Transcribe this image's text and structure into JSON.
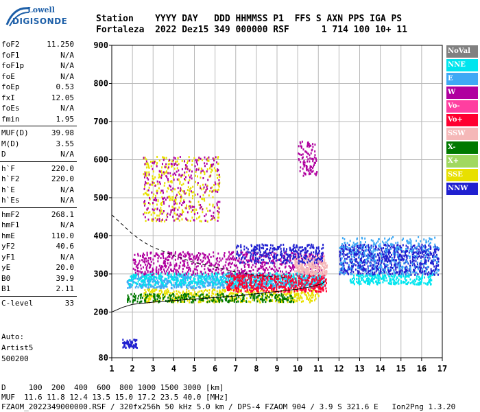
{
  "logo": {
    "line1": "Lowell",
    "line2": "DIGISONDE"
  },
  "header": {
    "line1": "Station    YYYY DAY   DDD HHMMSS P1  FFS S AXN PPS IGA PS",
    "line2": "Fortaleza  2022 Dez15 349 000000 RSF      1 714 100 10+ 11"
  },
  "params": {
    "group1": [
      {
        "name": "foF2",
        "value": "11.250"
      },
      {
        "name": "foF1",
        "value": "N/A"
      },
      {
        "name": "foF1p",
        "value": "N/A"
      },
      {
        "name": "foE",
        "value": "N/A"
      },
      {
        "name": "foEp",
        "value": "0.53"
      },
      {
        "name": "fxI",
        "value": "12.05"
      },
      {
        "name": "foEs",
        "value": "N/A"
      },
      {
        "name": "fmin",
        "value": "1.95"
      }
    ],
    "group2": [
      {
        "name": "MUF(D)",
        "value": "39.98"
      },
      {
        "name": "M(D)",
        "value": "3.55"
      },
      {
        "name": "D",
        "value": "N/A"
      }
    ],
    "group3": [
      {
        "name": "h`F",
        "value": "220.0"
      },
      {
        "name": "h`F2",
        "value": "220.0"
      },
      {
        "name": "h`E",
        "value": "N/A"
      },
      {
        "name": "h`Es",
        "value": "N/A"
      }
    ],
    "group4": [
      {
        "name": "hmF2",
        "value": "268.1"
      },
      {
        "name": "hmF1",
        "value": "N/A"
      },
      {
        "name": "hmE",
        "value": "110.0"
      },
      {
        "name": "yF2",
        "value": "40.6"
      },
      {
        "name": "yF1",
        "value": "N/A"
      },
      {
        "name": "yE",
        "value": "20.0"
      },
      {
        "name": "B0",
        "value": "39.9"
      },
      {
        "name": "B1",
        "value": "2.11"
      }
    ],
    "group5": [
      {
        "name": "C-level",
        "value": "33"
      }
    ]
  },
  "auto": {
    "line1": "Auto:",
    "line2": "Artist5",
    "line3": "500200"
  },
  "legend": [
    {
      "label": "NoVal",
      "color": "#808080"
    },
    {
      "label": "NNE",
      "color": "#00e5ee"
    },
    {
      "label": "E",
      "color": "#3fa9f5"
    },
    {
      "label": "W",
      "color": "#b0009f"
    },
    {
      "label": "Vo-",
      "color": "#ff3fa0"
    },
    {
      "label": "Vo+",
      "color": "#ff0030"
    },
    {
      "label": "SSW",
      "color": "#f5b8b8"
    },
    {
      "label": "X-",
      "color": "#007800"
    },
    {
      "label": "X+",
      "color": "#a0d860"
    },
    {
      "label": "SSE",
      "color": "#e8e000"
    },
    {
      "label": "NNW",
      "color": "#2020d0"
    }
  ],
  "footer": {
    "line1": "D     100  200  400  600  800 1000 1500 3000 [km]",
    "line2": "MUF  11.6 11.8 12.4 13.5 15.0 17.2 23.5 40.0 [MHz]",
    "line3": "FZAOM_2022349000000.RSF / 320fx256h 50 kHz 5.0 km / DPS-4 FZAOM 904 / 3.9 S 321.6 E   Ion2Png 1.3.20"
  },
  "chart_data": {
    "type": "scatter",
    "xlabel": "",
    "ylabel": "",
    "xlim": [
      1,
      17
    ],
    "ylim": [
      80,
      900
    ],
    "xticks": [
      1,
      2,
      3,
      4,
      5,
      6,
      7,
      8,
      9,
      10,
      11,
      12,
      13,
      14,
      15,
      16,
      17
    ],
    "yticks": [
      80,
      200,
      300,
      400,
      500,
      600,
      700,
      800,
      900
    ],
    "grid": true,
    "legend_position": "right",
    "clusters": [
      {
        "name": "E",
        "x": [
          1.7,
          11.3
        ],
        "y": [
          265,
          300
        ],
        "n": 900
      },
      {
        "name": "NNE",
        "x": [
          1.8,
          11.2
        ],
        "y": [
          270,
          305
        ],
        "n": 500
      },
      {
        "name": "W",
        "x": [
          2.0,
          11.2
        ],
        "y": [
          300,
          360
        ],
        "n": 700
      },
      {
        "name": "SSE",
        "x": [
          2.5,
          11.0
        ],
        "y": [
          228,
          262
        ],
        "n": 500
      },
      {
        "name": "X-",
        "x": [
          1.7,
          9.8
        ],
        "y": [
          228,
          250
        ],
        "n": 300
      },
      {
        "name": "Vo+",
        "x": [
          6.5,
          11.4
        ],
        "y": [
          255,
          300
        ],
        "n": 450
      },
      {
        "name": "SSW",
        "x": [
          9.8,
          11.4
        ],
        "y": [
          300,
          350
        ],
        "n": 250
      },
      {
        "name": "NNW",
        "x": [
          7.0,
          11.2
        ],
        "y": [
          330,
          380
        ],
        "n": 300
      },
      {
        "name": "SSE",
        "x": [
          2.5,
          6.2
        ],
        "y": [
          440,
          610
        ],
        "n": 350
      },
      {
        "name": "W",
        "x": [
          2.5,
          6.2
        ],
        "y": [
          440,
          610
        ],
        "n": 250
      },
      {
        "name": "NNW",
        "x": [
          12.0,
          16.8
        ],
        "y": [
          300,
          380
        ],
        "n": 800
      },
      {
        "name": "NNE",
        "x": [
          12.5,
          16.5
        ],
        "y": [
          275,
          300
        ],
        "n": 250
      },
      {
        "name": "E",
        "x": [
          12.0,
          16.8
        ],
        "y": [
          300,
          400
        ],
        "n": 350
      },
      {
        "name": "W",
        "x": [
          10.0,
          10.9
        ],
        "y": [
          560,
          650
        ],
        "n": 100
      },
      {
        "name": "NNW",
        "x": [
          1.5,
          2.2
        ],
        "y": [
          108,
          130
        ],
        "n": 60
      }
    ],
    "lines": [
      {
        "name": "trace-upper",
        "style": "dashed",
        "points": [
          [
            1,
            455
          ],
          [
            1.5,
            430
          ],
          [
            2,
            405
          ],
          [
            2.5,
            385
          ],
          [
            3,
            370
          ],
          [
            4,
            348
          ],
          [
            5,
            330
          ],
          [
            6,
            318
          ],
          [
            7,
            305
          ],
          [
            8,
            296
          ],
          [
            9,
            292
          ],
          [
            9.5,
            290
          ]
        ]
      },
      {
        "name": "trace-lower",
        "style": "solid",
        "points": [
          [
            1,
            200
          ],
          [
            1.5,
            212
          ],
          [
            2,
            220
          ],
          [
            3,
            226
          ],
          [
            4,
            230
          ],
          [
            5,
            234
          ],
          [
            6,
            238
          ],
          [
            7,
            242
          ],
          [
            8,
            248
          ],
          [
            9,
            254
          ],
          [
            10,
            260
          ],
          [
            10.8,
            268
          ],
          [
            11.2,
            275
          ],
          [
            11.3,
            280
          ]
        ]
      }
    ]
  }
}
